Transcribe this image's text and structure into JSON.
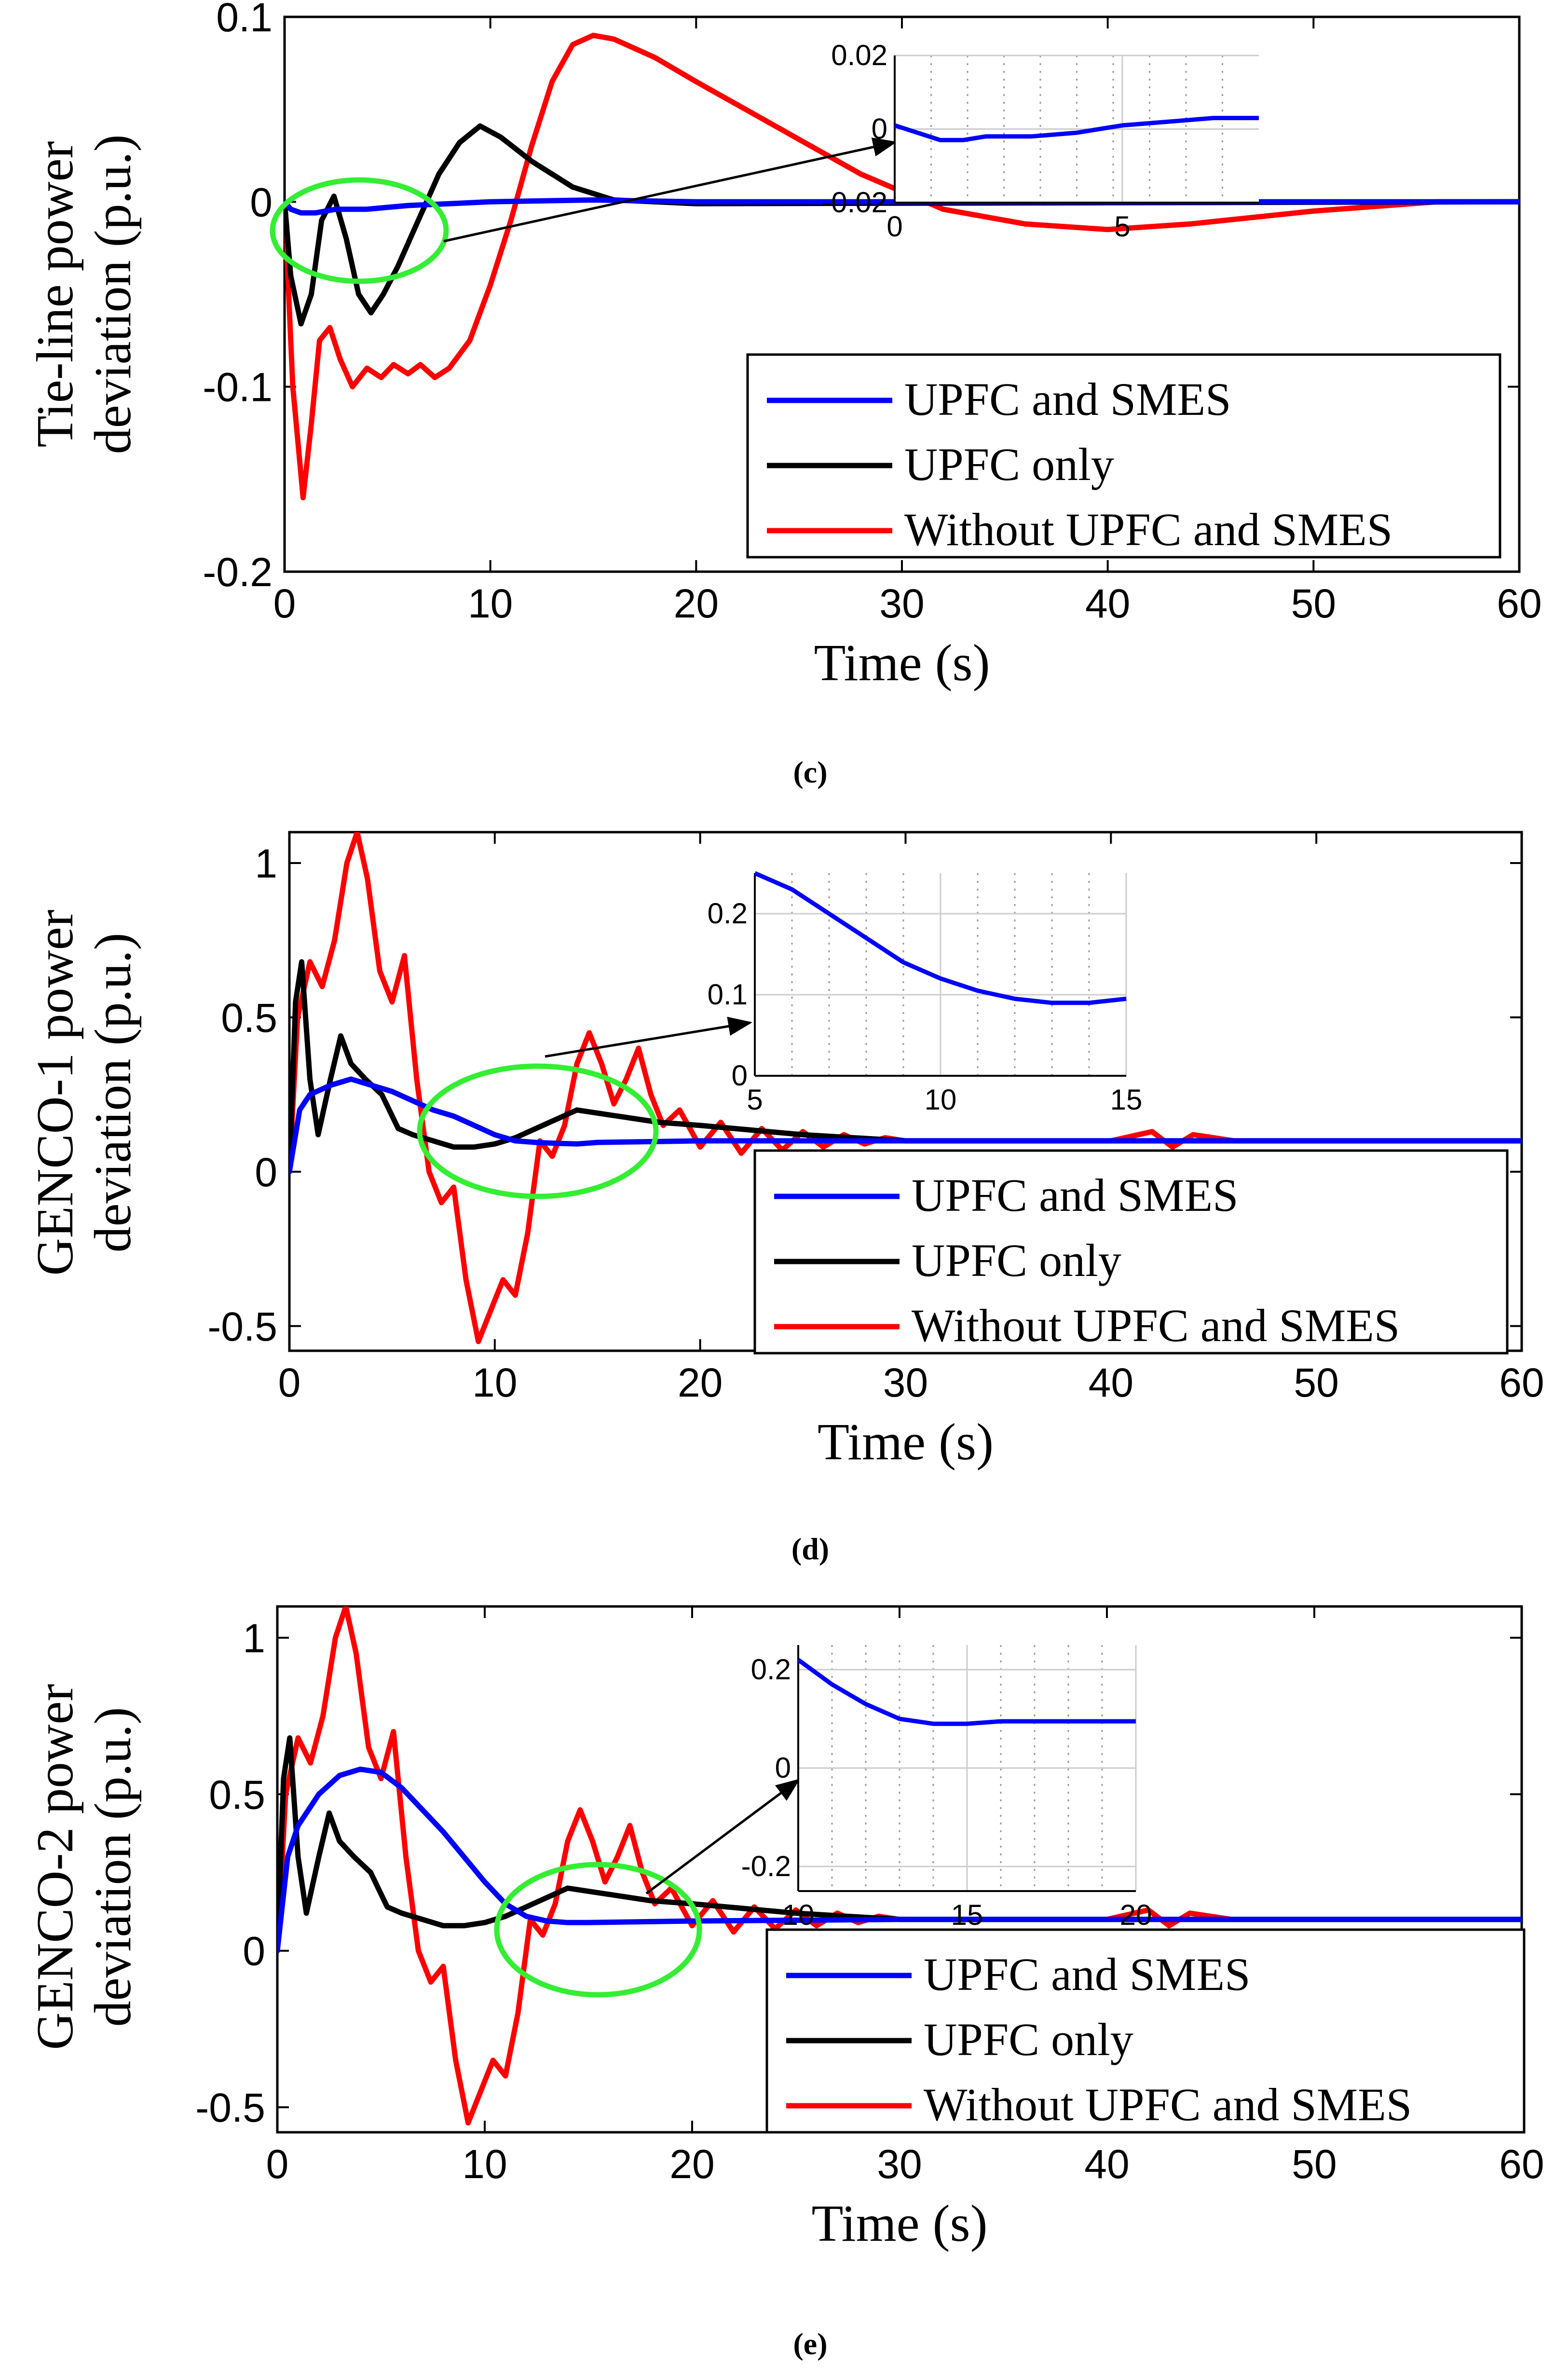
{
  "chart_data": [
    {
      "type": "line",
      "caption": "(c)",
      "xlabel": "Time (s)",
      "ylabel": [
        "Tie-line power",
        "deviation (p.u.)"
      ],
      "xlim": [
        0,
        60
      ],
      "ylim": [
        -0.2,
        0.1
      ],
      "xticks": [
        0,
        10,
        20,
        30,
        40,
        50,
        60
      ],
      "yticks": [
        -0.2,
        -0.1,
        0,
        0.1
      ],
      "ytick_labels": [
        "-0.2",
        "-0.1",
        "0",
        "0.1"
      ],
      "legend_position": "middle-right",
      "series": [
        {
          "name": "UPFC and SMES",
          "color": "#0000ff",
          "x": [
            0,
            0.3,
            0.8,
            1.5,
            2.5,
            4,
            6,
            8,
            10,
            15,
            20,
            60
          ],
          "y": [
            0,
            -0.004,
            -0.006,
            -0.006,
            -0.004,
            -0.004,
            -0.002,
            -0.001,
            0,
            0.001,
            0,
            0
          ]
        },
        {
          "name": "UPFC only",
          "color": "#000000",
          "x": [
            0,
            0.3,
            0.8,
            1.3,
            1.8,
            2.4,
            3,
            3.6,
            4.2,
            4.8,
            5.5,
            6.5,
            7.5,
            8.5,
            9.5,
            10.5,
            12,
            14,
            16,
            20,
            60
          ],
          "y": [
            0,
            -0.04,
            -0.066,
            -0.05,
            -0.01,
            0.003,
            -0.02,
            -0.05,
            -0.06,
            -0.05,
            -0.035,
            -0.01,
            0.015,
            0.032,
            0.041,
            0.035,
            0.022,
            0.008,
            0.001,
            -0.001,
            0
          ]
        },
        {
          "name": "Without UPFC and SMES",
          "color": "#ff0000",
          "x": [
            0,
            0.4,
            0.9,
            1.3,
            1.7,
            2.2,
            2.7,
            3.3,
            4,
            4.7,
            5.3,
            6,
            6.6,
            7.3,
            8,
            9,
            10,
            11,
            12,
            13,
            14,
            15,
            16,
            18,
            20,
            24,
            28,
            32,
            36,
            40,
            44,
            50,
            56,
            60
          ],
          "y": [
            0,
            -0.1,
            -0.16,
            -0.12,
            -0.075,
            -0.068,
            -0.085,
            -0.1,
            -0.09,
            -0.095,
            -0.088,
            -0.093,
            -0.088,
            -0.095,
            -0.09,
            -0.075,
            -0.045,
            -0.01,
            0.03,
            0.065,
            0.085,
            0.09,
            0.088,
            0.078,
            0.065,
            0.04,
            0.015,
            -0.004,
            -0.012,
            -0.015,
            -0.012,
            -0.005,
            0,
            0
          ]
        }
      ],
      "inset": {
        "xlim": [
          0,
          8
        ],
        "ylim": [
          -0.02,
          0.02
        ],
        "xticks": [
          0,
          5
        ],
        "xtick_labels": [
          "0",
          "5"
        ],
        "yticks": [
          -0.02,
          0,
          0.02
        ],
        "ytick_labels": [
          "-0.02",
          "0",
          "0.02"
        ],
        "series": [
          {
            "name": "UPFC and SMES",
            "color": "#0000ff",
            "x": [
              0,
              0.5,
              1,
              1.5,
              2,
              3,
              4,
              5,
              6,
              7,
              8
            ],
            "y": [
              0.001,
              -0.001,
              -0.003,
              -0.003,
              -0.002,
              -0.002,
              -0.001,
              0.001,
              0.002,
              0.003,
              0.003
            ]
          }
        ]
      }
    },
    {
      "type": "line",
      "caption": "(d)",
      "xlabel": "Time (s)",
      "ylabel": [
        "GENCO-1 power",
        "deviation (p.u.)"
      ],
      "xlim": [
        0,
        60
      ],
      "ylim": [
        -0.58,
        1.1
      ],
      "xticks": [
        0,
        10,
        20,
        30,
        40,
        50,
        60
      ],
      "yticks": [
        -0.5,
        0,
        0.5,
        1
      ],
      "ytick_labels": [
        "-0.5",
        "0",
        "0.5",
        "1"
      ],
      "legend_position": "lower-right",
      "series": [
        {
          "name": "UPFC and SMES",
          "color": "#0000ff",
          "x": [
            0,
            0.5,
            1,
            2,
            3,
            4,
            5,
            6,
            7,
            8,
            9,
            10,
            11,
            12,
            13,
            14,
            15,
            20,
            30,
            40,
            60
          ],
          "y": [
            0,
            0.2,
            0.25,
            0.28,
            0.3,
            0.28,
            0.26,
            0.23,
            0.2,
            0.18,
            0.15,
            0.12,
            0.1,
            0.095,
            0.092,
            0.09,
            0.095,
            0.1,
            0.1,
            0.1,
            0.1
          ]
        },
        {
          "name": "UPFC only",
          "color": "#000000",
          "x": [
            0,
            0.3,
            0.6,
            1,
            1.4,
            2,
            2.5,
            3,
            3.7,
            4.5,
            5.3,
            6,
            7,
            8,
            9,
            10,
            11,
            12,
            13,
            14,
            16,
            18,
            20,
            25,
            30,
            40,
            60
          ],
          "y": [
            0,
            0.55,
            0.68,
            0.3,
            0.12,
            0.3,
            0.44,
            0.35,
            0.3,
            0.25,
            0.14,
            0.12,
            0.1,
            0.08,
            0.08,
            0.09,
            0.11,
            0.14,
            0.17,
            0.2,
            0.18,
            0.16,
            0.15,
            0.12,
            0.1,
            0.1,
            0.1
          ]
        },
        {
          "name": "Without UPFC and SMES",
          "color": "#ff0000",
          "x": [
            0,
            0.4,
            1,
            1.6,
            2.2,
            2.8,
            3.3,
            3.8,
            4.4,
            5,
            5.6,
            6.2,
            6.8,
            7.4,
            8,
            8.6,
            9.2,
            9.8,
            10.4,
            11,
            11.6,
            12.2,
            12.8,
            13.4,
            14,
            14.6,
            15.2,
            15.8,
            16.4,
            17,
            17.6,
            18.2,
            19,
            20,
            21,
            22,
            23,
            24,
            25,
            26,
            27,
            28,
            29,
            30,
            35,
            40,
            42,
            43,
            44,
            46,
            48,
            60
          ],
          "y": [
            0,
            0.5,
            0.68,
            0.6,
            0.75,
            1.0,
            1.1,
            0.95,
            0.65,
            0.55,
            0.7,
            0.3,
            0.0,
            -0.1,
            -0.05,
            -0.35,
            -0.55,
            -0.45,
            -0.35,
            -0.4,
            -0.2,
            0.1,
            0.05,
            0.15,
            0.35,
            0.45,
            0.35,
            0.22,
            0.3,
            0.4,
            0.25,
            0.15,
            0.2,
            0.08,
            0.16,
            0.06,
            0.14,
            0.07,
            0.13,
            0.08,
            0.12,
            0.09,
            0.11,
            0.1,
            0.1,
            0.1,
            0.13,
            0.08,
            0.12,
            0.1,
            0.1,
            0.1
          ]
        }
      ],
      "inset": {
        "xlim": [
          5,
          15
        ],
        "ylim": [
          0,
          0.25
        ],
        "xticks": [
          5,
          10,
          15
        ],
        "xtick_labels": [
          "5",
          "10",
          "15"
        ],
        "yticks": [
          0,
          0.1,
          0.2
        ],
        "ytick_labels": [
          "0",
          "0.1",
          "0.2"
        ],
        "series": [
          {
            "name": "UPFC and SMES",
            "color": "#0000ff",
            "x": [
              5,
              6,
              7,
              8,
              9,
              10,
              11,
              12,
              13,
              14,
              15
            ],
            "y": [
              0.25,
              0.23,
              0.2,
              0.17,
              0.14,
              0.12,
              0.105,
              0.095,
              0.09,
              0.09,
              0.095
            ]
          }
        ]
      }
    },
    {
      "type": "line",
      "caption": "(e)",
      "xlabel": "Time (s)",
      "ylabel": [
        "GENCO-2 power",
        "deviation (p.u.)"
      ],
      "xlim": [
        0,
        60
      ],
      "ylim": [
        -0.58,
        1.1
      ],
      "xticks": [
        0,
        10,
        20,
        30,
        40,
        50,
        60
      ],
      "yticks": [
        -0.5,
        0,
        0.5,
        1
      ],
      "ytick_labels": [
        "-0.5",
        "0",
        "0.5",
        "1"
      ],
      "legend_position": "lower-right",
      "series": [
        {
          "name": "UPFC and SMES",
          "color": "#0000ff",
          "x": [
            0,
            0.5,
            1,
            2,
            3,
            4,
            5,
            6,
            7,
            8,
            9,
            10,
            11,
            12,
            13,
            14,
            15,
            20,
            30,
            40,
            60
          ],
          "y": [
            0,
            0.3,
            0.4,
            0.5,
            0.56,
            0.58,
            0.57,
            0.52,
            0.45,
            0.38,
            0.3,
            0.22,
            0.15,
            0.11,
            0.095,
            0.09,
            0.09,
            0.095,
            0.1,
            0.1,
            0.1
          ]
        },
        {
          "name": "UPFC only",
          "color": "#000000",
          "x": [
            0,
            0.3,
            0.6,
            1,
            1.4,
            2,
            2.5,
            3,
            3.7,
            4.5,
            5.3,
            6,
            7,
            8,
            9,
            10,
            11,
            12,
            13,
            14,
            16,
            18,
            20,
            25,
            30,
            40,
            60
          ],
          "y": [
            0,
            0.55,
            0.68,
            0.3,
            0.12,
            0.3,
            0.44,
            0.35,
            0.3,
            0.25,
            0.14,
            0.12,
            0.1,
            0.08,
            0.08,
            0.09,
            0.11,
            0.14,
            0.17,
            0.2,
            0.18,
            0.16,
            0.15,
            0.12,
            0.1,
            0.1,
            0.1
          ]
        },
        {
          "name": "Without UPFC and SMES",
          "color": "#ff0000",
          "x": [
            0,
            0.4,
            1,
            1.6,
            2.2,
            2.8,
            3.3,
            3.8,
            4.4,
            5,
            5.6,
            6.2,
            6.8,
            7.4,
            8,
            8.6,
            9.2,
            9.8,
            10.4,
            11,
            11.6,
            12.2,
            12.8,
            13.4,
            14,
            14.6,
            15.2,
            15.8,
            16.4,
            17,
            17.6,
            18.2,
            19,
            20,
            21,
            22,
            23,
            24,
            25,
            26,
            27,
            28,
            29,
            30,
            35,
            40,
            42,
            43,
            44,
            46,
            48,
            60
          ],
          "y": [
            0,
            0.5,
            0.68,
            0.6,
            0.75,
            1.0,
            1.1,
            0.95,
            0.65,
            0.55,
            0.7,
            0.3,
            0.0,
            -0.1,
            -0.05,
            -0.35,
            -0.55,
            -0.45,
            -0.35,
            -0.4,
            -0.2,
            0.1,
            0.05,
            0.15,
            0.35,
            0.45,
            0.35,
            0.22,
            0.3,
            0.4,
            0.25,
            0.15,
            0.2,
            0.08,
            0.16,
            0.06,
            0.14,
            0.07,
            0.13,
            0.08,
            0.12,
            0.09,
            0.11,
            0.1,
            0.1,
            0.1,
            0.13,
            0.08,
            0.12,
            0.1,
            0.1,
            0.1
          ]
        }
      ],
      "inset": {
        "xlim": [
          10,
          20
        ],
        "ylim": [
          -0.25,
          0.25
        ],
        "xticks": [
          10,
          15,
          20
        ],
        "xtick_labels": [
          "10",
          "15",
          "20"
        ],
        "yticks": [
          -0.2,
          0,
          0.2
        ],
        "ytick_labels": [
          "-0.2",
          "0",
          "0.2"
        ],
        "series": [
          {
            "name": "UPFC and SMES",
            "color": "#0000ff",
            "x": [
              10,
              11,
              12,
              13,
              14,
              15,
              16,
              17,
              18,
              19,
              20
            ],
            "y": [
              0.22,
              0.17,
              0.13,
              0.1,
              0.09,
              0.09,
              0.095,
              0.095,
              0.095,
              0.095,
              0.095
            ]
          }
        ]
      }
    }
  ]
}
